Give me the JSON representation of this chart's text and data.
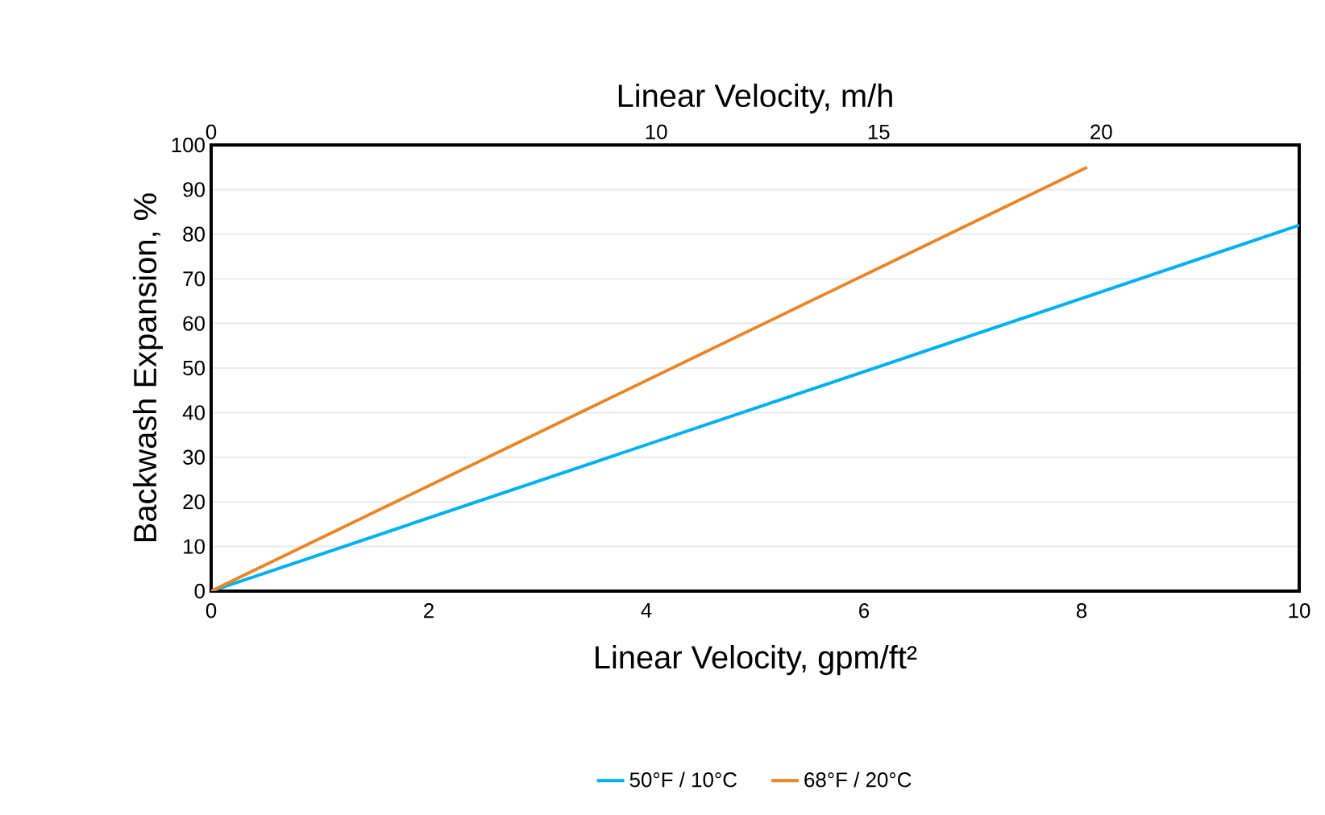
{
  "chart_data": {
    "type": "line",
    "xlabel": "Linear Velocity, gpm/ft²",
    "x2label": "Linear Velocity, m/h",
    "ylabel": "Backwash Expansion, %",
    "xlim": [
      0,
      10
    ],
    "xticks": [
      0,
      2,
      4,
      6,
      8,
      10
    ],
    "x2lim": [
      0,
      24.45
    ],
    "x2ticks": [
      0,
      10,
      15,
      20
    ],
    "ylim": [
      0,
      100
    ],
    "yticks": [
      0,
      10,
      20,
      30,
      40,
      50,
      60,
      70,
      80,
      90,
      100
    ],
    "grid": "y",
    "legend": "bottom",
    "line_style": "solid",
    "marker": "none",
    "series": [
      {
        "name": "50°F / 10°C",
        "color": "#00b0f0",
        "x": [
          0,
          10
        ],
        "values": [
          0,
          82
        ]
      },
      {
        "name": "68°F / 20°C",
        "color": "#e8862a",
        "x": [
          0,
          8.05
        ],
        "values": [
          0,
          95
        ]
      }
    ]
  }
}
